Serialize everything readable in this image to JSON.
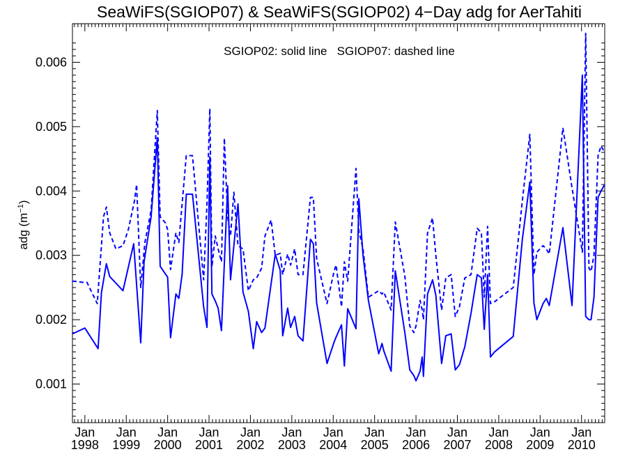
{
  "chart_data": {
    "type": "line",
    "title": "SeaWiFS(SGIOP07) & SeaWiFS(SGIOP02) 4−Day adg for AerTahiti",
    "annotation": "SGIOP02: solid line   SGIOP07: dashed line",
    "ylabel": "adg (m",
    "ylabel_sup": "−1",
    "ylabel_suffix": ")",
    "xlabel": "",
    "ylim": [
      0.0004,
      0.0066
    ],
    "xlim": [
      1997.7,
      2010.56
    ],
    "yticks": [
      "0.001",
      "0.002",
      "0.003",
      "0.004",
      "0.005",
      "0.006"
    ],
    "xticks": [
      {
        "month": "Jan",
        "year": "1998"
      },
      {
        "month": "Jan",
        "year": "1999"
      },
      {
        "month": "Jan",
        "year": "2000"
      },
      {
        "month": "Jan",
        "year": "2001"
      },
      {
        "month": "Jan",
        "year": "2002"
      },
      {
        "month": "Jan",
        "year": "2003"
      },
      {
        "month": "Jan",
        "year": "2004"
      },
      {
        "month": "Jan",
        "year": "2005"
      },
      {
        "month": "Jan",
        "year": "2006"
      },
      {
        "month": "Jan",
        "year": "2007"
      },
      {
        "month": "Jan",
        "year": "2008"
      },
      {
        "month": "Jan",
        "year": "2009"
      },
      {
        "month": "Jan",
        "year": "2010"
      }
    ],
    "grid": false,
    "color": "#0000ff",
    "series": [
      {
        "style": "solid",
        "label": "SGIOP02",
        "x": [
          1997.7,
          1998.0,
          1998.32,
          1998.4,
          1998.52,
          1998.6,
          1998.92,
          1999.18,
          1999.35,
          1999.43,
          1999.6,
          1999.75,
          1999.82,
          2000.0,
          2000.07,
          2000.2,
          2000.27,
          2000.35,
          2000.45,
          2000.6,
          2000.87,
          2000.95,
          2001.02,
          2001.07,
          2001.15,
          2001.22,
          2001.3,
          2001.45,
          2001.52,
          2001.7,
          2001.82,
          2001.95,
          2002.07,
          2002.15,
          2002.27,
          2002.35,
          2002.6,
          2002.72,
          2002.78,
          2002.9,
          2002.97,
          2003.07,
          2003.15,
          2003.27,
          2003.45,
          2003.52,
          2003.6,
          2003.85,
          2004.02,
          2004.07,
          2004.2,
          2004.27,
          2004.35,
          2004.55,
          2004.62,
          2004.72,
          2004.85,
          2005.1,
          2005.18,
          2005.22,
          2005.4,
          2005.5,
          2005.73,
          2005.85,
          2005.95,
          2006.0,
          2006.1,
          2006.15,
          2006.18,
          2006.28,
          2006.4,
          2006.48,
          2006.62,
          2006.72,
          2006.85,
          2006.95,
          2007.05,
          2007.18,
          2007.33,
          2007.48,
          2007.58,
          2007.65,
          2007.73,
          2007.8,
          2007.9,
          2008.35,
          2008.57,
          2008.75,
          2008.85,
          2008.92,
          2009.07,
          2009.15,
          2009.22,
          2009.55,
          2009.77,
          2010.02,
          2010.1,
          2010.18,
          2010.23,
          2010.3,
          2010.4,
          2010.47,
          2010.56
        ],
        "y": [
          0.00178,
          0.00187,
          0.00155,
          0.00242,
          0.00287,
          0.00267,
          0.00245,
          0.00318,
          0.00164,
          0.0029,
          0.0036,
          0.00483,
          0.00283,
          0.00266,
          0.00172,
          0.0024,
          0.00233,
          0.0027,
          0.00395,
          0.00395,
          0.0022,
          0.00188,
          0.00453,
          0.0024,
          0.00229,
          0.00218,
          0.00183,
          0.00408,
          0.00262,
          0.0038,
          0.00243,
          0.00213,
          0.00155,
          0.00197,
          0.0018,
          0.00187,
          0.00302,
          0.00277,
          0.00175,
          0.00218,
          0.00188,
          0.00205,
          0.00175,
          0.00167,
          0.00325,
          0.00318,
          0.00226,
          0.00132,
          0.00165,
          0.00173,
          0.00192,
          0.00128,
          0.00217,
          0.00186,
          0.00388,
          0.003,
          0.0023,
          0.00147,
          0.00163,
          0.00152,
          0.0012,
          0.00276,
          0.0018,
          0.00122,
          0.00113,
          0.00105,
          0.0012,
          0.00142,
          0.00112,
          0.0024,
          0.00262,
          0.00238,
          0.00132,
          0.00175,
          0.00178,
          0.00122,
          0.0013,
          0.00158,
          0.0021,
          0.0027,
          0.00265,
          0.00185,
          0.0027,
          0.00142,
          0.0015,
          0.00174,
          0.00325,
          0.00414,
          0.00226,
          0.002,
          0.00225,
          0.00233,
          0.00222,
          0.00343,
          0.00222,
          0.0058,
          0.00205,
          0.002,
          0.002,
          0.00235,
          0.0039,
          0.004,
          0.0041
        ]
      },
      {
        "style": "dashed",
        "label": "SGIOP07",
        "x": [
          1997.7,
          1997.95,
          1998.05,
          1998.3,
          1998.45,
          1998.52,
          1998.6,
          1998.75,
          1998.92,
          1999.05,
          1999.2,
          1999.25,
          1999.35,
          1999.45,
          1999.6,
          1999.75,
          1999.82,
          1999.95,
          2000.0,
          2000.07,
          2000.2,
          2000.27,
          2000.35,
          2000.45,
          2000.6,
          2000.87,
          2000.95,
          2001.02,
          2001.07,
          2001.15,
          2001.22,
          2001.3,
          2001.37,
          2001.45,
          2001.52,
          2001.6,
          2001.7,
          2001.82,
          2001.95,
          2002.07,
          2002.15,
          2002.27,
          2002.35,
          2002.5,
          2002.6,
          2002.72,
          2002.78,
          2002.9,
          2002.97,
          2003.07,
          2003.15,
          2003.27,
          2003.45,
          2003.52,
          2003.6,
          2003.85,
          2004.02,
          2004.07,
          2004.2,
          2004.27,
          2004.35,
          2004.55,
          2004.62,
          2004.72,
          2004.85,
          2005.1,
          2005.18,
          2005.22,
          2005.4,
          2005.5,
          2005.73,
          2005.85,
          2005.95,
          2006.0,
          2006.1,
          2006.15,
          2006.18,
          2006.28,
          2006.4,
          2006.48,
          2006.62,
          2006.72,
          2006.85,
          2006.95,
          2007.05,
          2007.18,
          2007.33,
          2007.48,
          2007.58,
          2007.65,
          2007.73,
          2007.8,
          2007.9,
          2008.35,
          2008.57,
          2008.75,
          2008.85,
          2008.92,
          2009.07,
          2009.15,
          2009.22,
          2009.55,
          2009.77,
          2010.02,
          2010.1,
          2010.18,
          2010.23,
          2010.3,
          2010.4,
          2010.47,
          2010.56
        ],
        "y": [
          0.0026,
          0.00258,
          0.00258,
          0.00225,
          0.0036,
          0.00375,
          0.00335,
          0.0031,
          0.00315,
          0.0034,
          0.00385,
          0.0041,
          0.0025,
          0.0032,
          0.0037,
          0.00525,
          0.0036,
          0.0035,
          0.0034,
          0.00278,
          0.00335,
          0.0032,
          0.0038,
          0.00455,
          0.00455,
          0.00262,
          0.0038,
          0.00528,
          0.00282,
          0.0033,
          0.0031,
          0.0029,
          0.00482,
          0.0036,
          0.0033,
          0.00398,
          0.00315,
          0.0031,
          0.00245,
          0.00262,
          0.00265,
          0.0028,
          0.0033,
          0.00355,
          0.003,
          0.00303,
          0.0027,
          0.00302,
          0.00285,
          0.0031,
          0.0027,
          0.0027,
          0.0039,
          0.0039,
          0.00295,
          0.00225,
          0.00275,
          0.00285,
          0.0022,
          0.0029,
          0.0026,
          0.00435,
          0.00338,
          0.0031,
          0.00235,
          0.00245,
          0.0024,
          0.00243,
          0.00215,
          0.00352,
          0.00268,
          0.0019,
          0.0018,
          0.0019,
          0.0023,
          0.00215,
          0.002,
          0.00335,
          0.00358,
          0.003,
          0.00215,
          0.00265,
          0.0027,
          0.00205,
          0.0022,
          0.00265,
          0.0027,
          0.00342,
          0.00335,
          0.00235,
          0.00345,
          0.00225,
          0.00228,
          0.0025,
          0.00385,
          0.00488,
          0.0027,
          0.00305,
          0.00315,
          0.0031,
          0.00302,
          0.00498,
          0.00405,
          0.00305,
          0.00645,
          0.0028,
          0.00275,
          0.003,
          0.00455,
          0.0047,
          0.0046
        ]
      }
    ]
  }
}
